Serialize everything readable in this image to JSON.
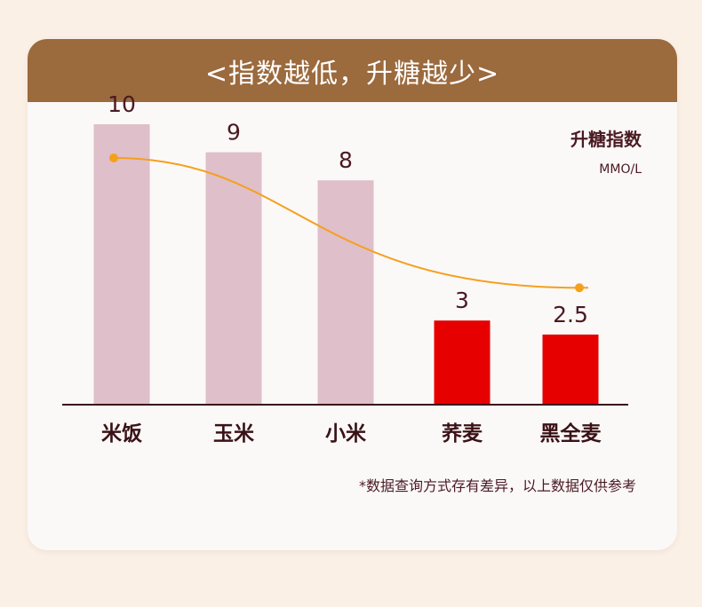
{
  "header": {
    "title": "<指数越低，升糖越少>"
  },
  "chart_data": {
    "type": "bar",
    "categories": [
      "米饭",
      "玉米",
      "小米",
      "荞麦",
      "黑全麦"
    ],
    "values": [
      10,
      9,
      8,
      3,
      2.5
    ],
    "value_labels": [
      "10",
      "9",
      "8",
      "3",
      "2.5"
    ],
    "ylabel": "升糖指数",
    "yunit": "MMO/L",
    "ylim": [
      0,
      12
    ],
    "trend_line": {
      "color": "#f5a01a",
      "points": [
        10,
        2.5
      ]
    },
    "colors": {
      "default_bar": "#dfbfca",
      "highlight_bar": "#e60000",
      "axis": "#3a1216"
    },
    "highlighted": [
      false,
      false,
      false,
      true,
      true
    ]
  },
  "footnote": "*数据查询方式存有差异，以上数据仅供参考"
}
